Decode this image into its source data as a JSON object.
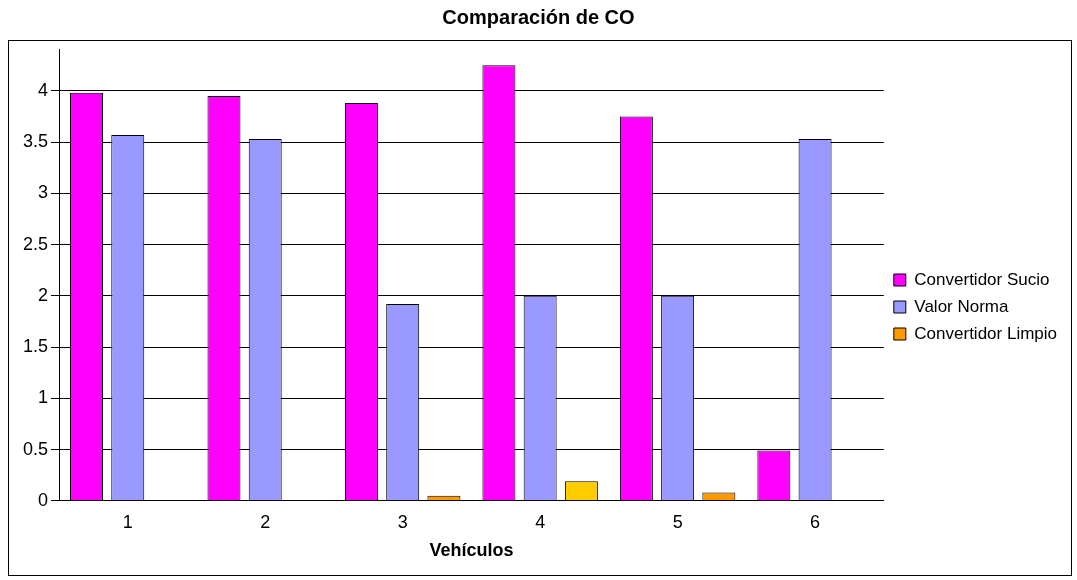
{
  "chart_data": {
    "type": "bar",
    "title": "Comparación de CO",
    "xlabel": "Vehículos",
    "categories": [
      "1",
      "2",
      "3",
      "4",
      "5",
      "6"
    ],
    "series": [
      {
        "name": "Convertidor Sucio",
        "color": "#ff00ff",
        "values": [
          3.98,
          3.95,
          3.88,
          4.25,
          3.75,
          0.49
        ]
      },
      {
        "name": "Valor Norma",
        "color": "#9999ff",
        "values": [
          3.57,
          3.53,
          1.92,
          2.0,
          2.0,
          3.53
        ]
      },
      {
        "name": "Convertidor Limpio",
        "color": "#ff9900",
        "colors": [
          "#ff9900",
          "#ff9900",
          "#ff9900",
          "#ffcc00",
          "#ff9900",
          "#ff9900"
        ],
        "values": [
          0,
          0,
          0.05,
          0.19,
          0.08,
          0
        ]
      }
    ],
    "ylim": [
      0,
      4.4
    ],
    "yticks": [
      0,
      0.5,
      1,
      1.5,
      2,
      2.5,
      3,
      3.5,
      4
    ],
    "grid": "y",
    "legend": "right"
  }
}
